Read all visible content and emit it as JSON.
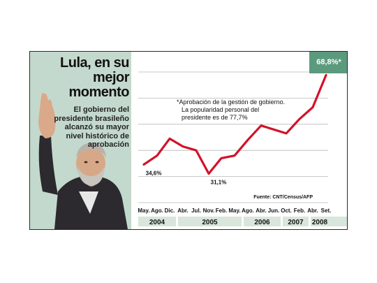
{
  "headline": "Lula, en su mejor momento",
  "subtext": "El gobierno del presidente brasileño alcanzó su mayor nivel histórico de aprobación",
  "note": [
    "*Aprobación de la gestión de gobierno.",
    "La popularidad personal del",
    "presidente es de 77,7%"
  ],
  "source": "Fuente: CNT/Census/AFP",
  "colors": {
    "line": "#d2122a",
    "panel": "#c4d9cd",
    "highlight": "#5b9a7d",
    "year_box": "#d8e6dc"
  },
  "chart_data": {
    "type": "line",
    "title": "",
    "xlabel": "",
    "ylabel": "",
    "ylim": [
      20,
      70
    ],
    "yticks": [
      20,
      30,
      40,
      50,
      60
    ],
    "grid": true,
    "month_labels": [
      "May.",
      "Ago.",
      "Dic.",
      "Abr.",
      "Jul.",
      "Nov.",
      "Feb.",
      "May.",
      "Ago.",
      "Abr.",
      "Jun.",
      "Oct.",
      "Feb.",
      "Abr.",
      "Set."
    ],
    "year_labels": [
      "2004",
      "2005",
      "2006",
      "2007",
      "2008"
    ],
    "series": [
      {
        "values": [
          34.6,
          38.0,
          44.5,
          41.5,
          40.0,
          31.1,
          37.0,
          38.0,
          44.0,
          49.5,
          48.0,
          46.5,
          52.0,
          56.5,
          68.8
        ]
      }
    ],
    "annotations": [
      {
        "index": 0,
        "label": "34,6%"
      },
      {
        "index": 5,
        "label": "31,1%"
      },
      {
        "index": 14,
        "label": "68,8%*"
      }
    ]
  }
}
